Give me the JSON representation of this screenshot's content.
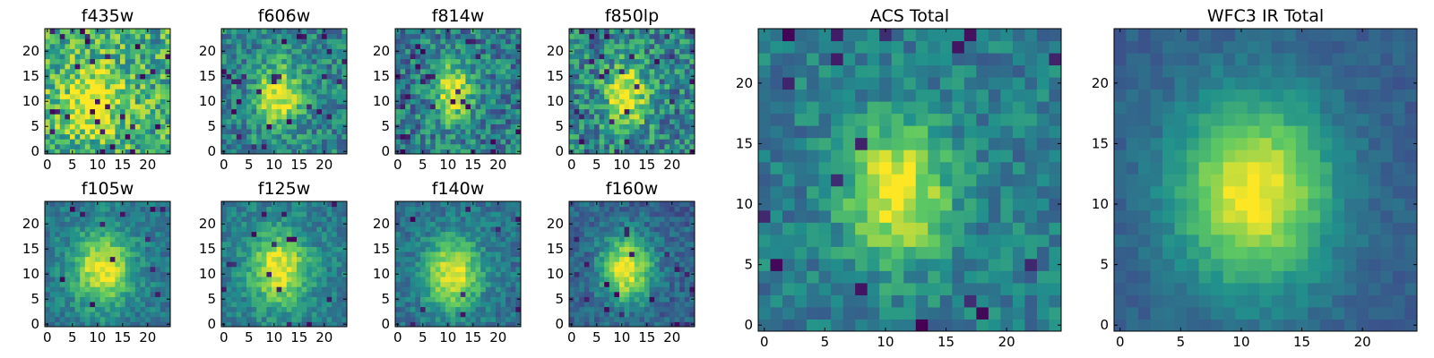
{
  "chart_data": [
    {
      "type": "heatmap",
      "title": "f435w",
      "n": 25,
      "x_ticks": [
        0,
        5,
        10,
        15,
        20
      ],
      "y_ticks": [
        0,
        5,
        10,
        15,
        20
      ],
      "peak": [
        9,
        10
      ],
      "sigma": [
        4.5,
        5.0
      ],
      "noise": 0.55,
      "base": 0.62,
      "dark_frac": 0.04,
      "seed": 11
    },
    {
      "type": "heatmap",
      "title": "f606w",
      "n": 25,
      "x_ticks": [
        0,
        5,
        10,
        15,
        20
      ],
      "y_ticks": [
        0,
        5,
        10,
        15,
        20
      ],
      "peak": [
        11,
        11
      ],
      "sigma": [
        3.0,
        4.5
      ],
      "noise": 0.4,
      "base": 0.45,
      "dark_frac": 0.04,
      "seed": 23
    },
    {
      "type": "heatmap",
      "title": "f814w",
      "n": 25,
      "x_ticks": [
        0,
        5,
        10,
        15,
        20
      ],
      "y_ticks": [
        0,
        5,
        10,
        15,
        20
      ],
      "peak": [
        11,
        12
      ],
      "sigma": [
        2.5,
        4.0
      ],
      "noise": 0.45,
      "base": 0.42,
      "dark_frac": 0.05,
      "seed": 37
    },
    {
      "type": "heatmap",
      "title": "f850lp",
      "n": 25,
      "x_ticks": [
        0,
        5,
        10,
        15,
        20
      ],
      "y_ticks": [
        0,
        5,
        10,
        15,
        20
      ],
      "peak": [
        11,
        11
      ],
      "sigma": [
        3.0,
        4.5
      ],
      "noise": 0.5,
      "base": 0.45,
      "dark_frac": 0.05,
      "seed": 41
    },
    {
      "type": "heatmap",
      "title": "f105w",
      "n": 25,
      "x_ticks": [
        0,
        5,
        10,
        15,
        20
      ],
      "y_ticks": [
        0,
        5,
        10,
        15,
        20
      ],
      "peak": [
        11,
        11
      ],
      "sigma": [
        4.0,
        5.0
      ],
      "noise": 0.25,
      "base": 0.4,
      "dark_frac": 0.02,
      "seed": 53
    },
    {
      "type": "heatmap",
      "title": "f125w",
      "n": 25,
      "x_ticks": [
        0,
        5,
        10,
        15,
        20
      ],
      "y_ticks": [
        0,
        5,
        10,
        15,
        20
      ],
      "peak": [
        11,
        11
      ],
      "sigma": [
        4.0,
        5.0
      ],
      "noise": 0.25,
      "base": 0.42,
      "dark_frac": 0.02,
      "seed": 67
    },
    {
      "type": "heatmap",
      "title": "f140w",
      "n": 25,
      "x_ticks": [
        0,
        5,
        10,
        15,
        20
      ],
      "y_ticks": [
        0,
        5,
        10,
        15,
        20
      ],
      "peak": [
        11,
        10
      ],
      "sigma": [
        3.8,
        4.8
      ],
      "noise": 0.25,
      "base": 0.38,
      "dark_frac": 0.02,
      "seed": 79
    },
    {
      "type": "heatmap",
      "title": "f160w",
      "n": 25,
      "x_ticks": [
        0,
        5,
        10,
        15,
        20
      ],
      "y_ticks": [
        0,
        5,
        10,
        15,
        20
      ],
      "peak": [
        11,
        11
      ],
      "sigma": [
        3.5,
        4.5
      ],
      "noise": 0.25,
      "base": 0.32,
      "dark_frac": 0.03,
      "seed": 83
    },
    {
      "type": "heatmap",
      "title": "ACS Total",
      "n": 25,
      "x_ticks": [
        0,
        5,
        10,
        15,
        20
      ],
      "y_ticks": [
        0,
        5,
        10,
        15,
        20
      ],
      "peak": [
        11,
        11
      ],
      "sigma": [
        3.0,
        4.0
      ],
      "noise": 0.28,
      "base": 0.42,
      "dark_frac": 0.035,
      "seed": 97
    },
    {
      "type": "heatmap",
      "title": "WFC3 IR Total",
      "n": 25,
      "x_ticks": [
        0,
        5,
        10,
        15,
        20
      ],
      "y_ticks": [
        0,
        5,
        10,
        15,
        20
      ],
      "peak": [
        11,
        11
      ],
      "sigma": [
        4.5,
        5.5
      ],
      "noise": 0.12,
      "base": 0.3,
      "dark_frac": 0.0,
      "seed": 101
    }
  ],
  "colormap": [
    "#440154",
    "#3b528b",
    "#21918c",
    "#5ec962",
    "#fde725"
  ]
}
